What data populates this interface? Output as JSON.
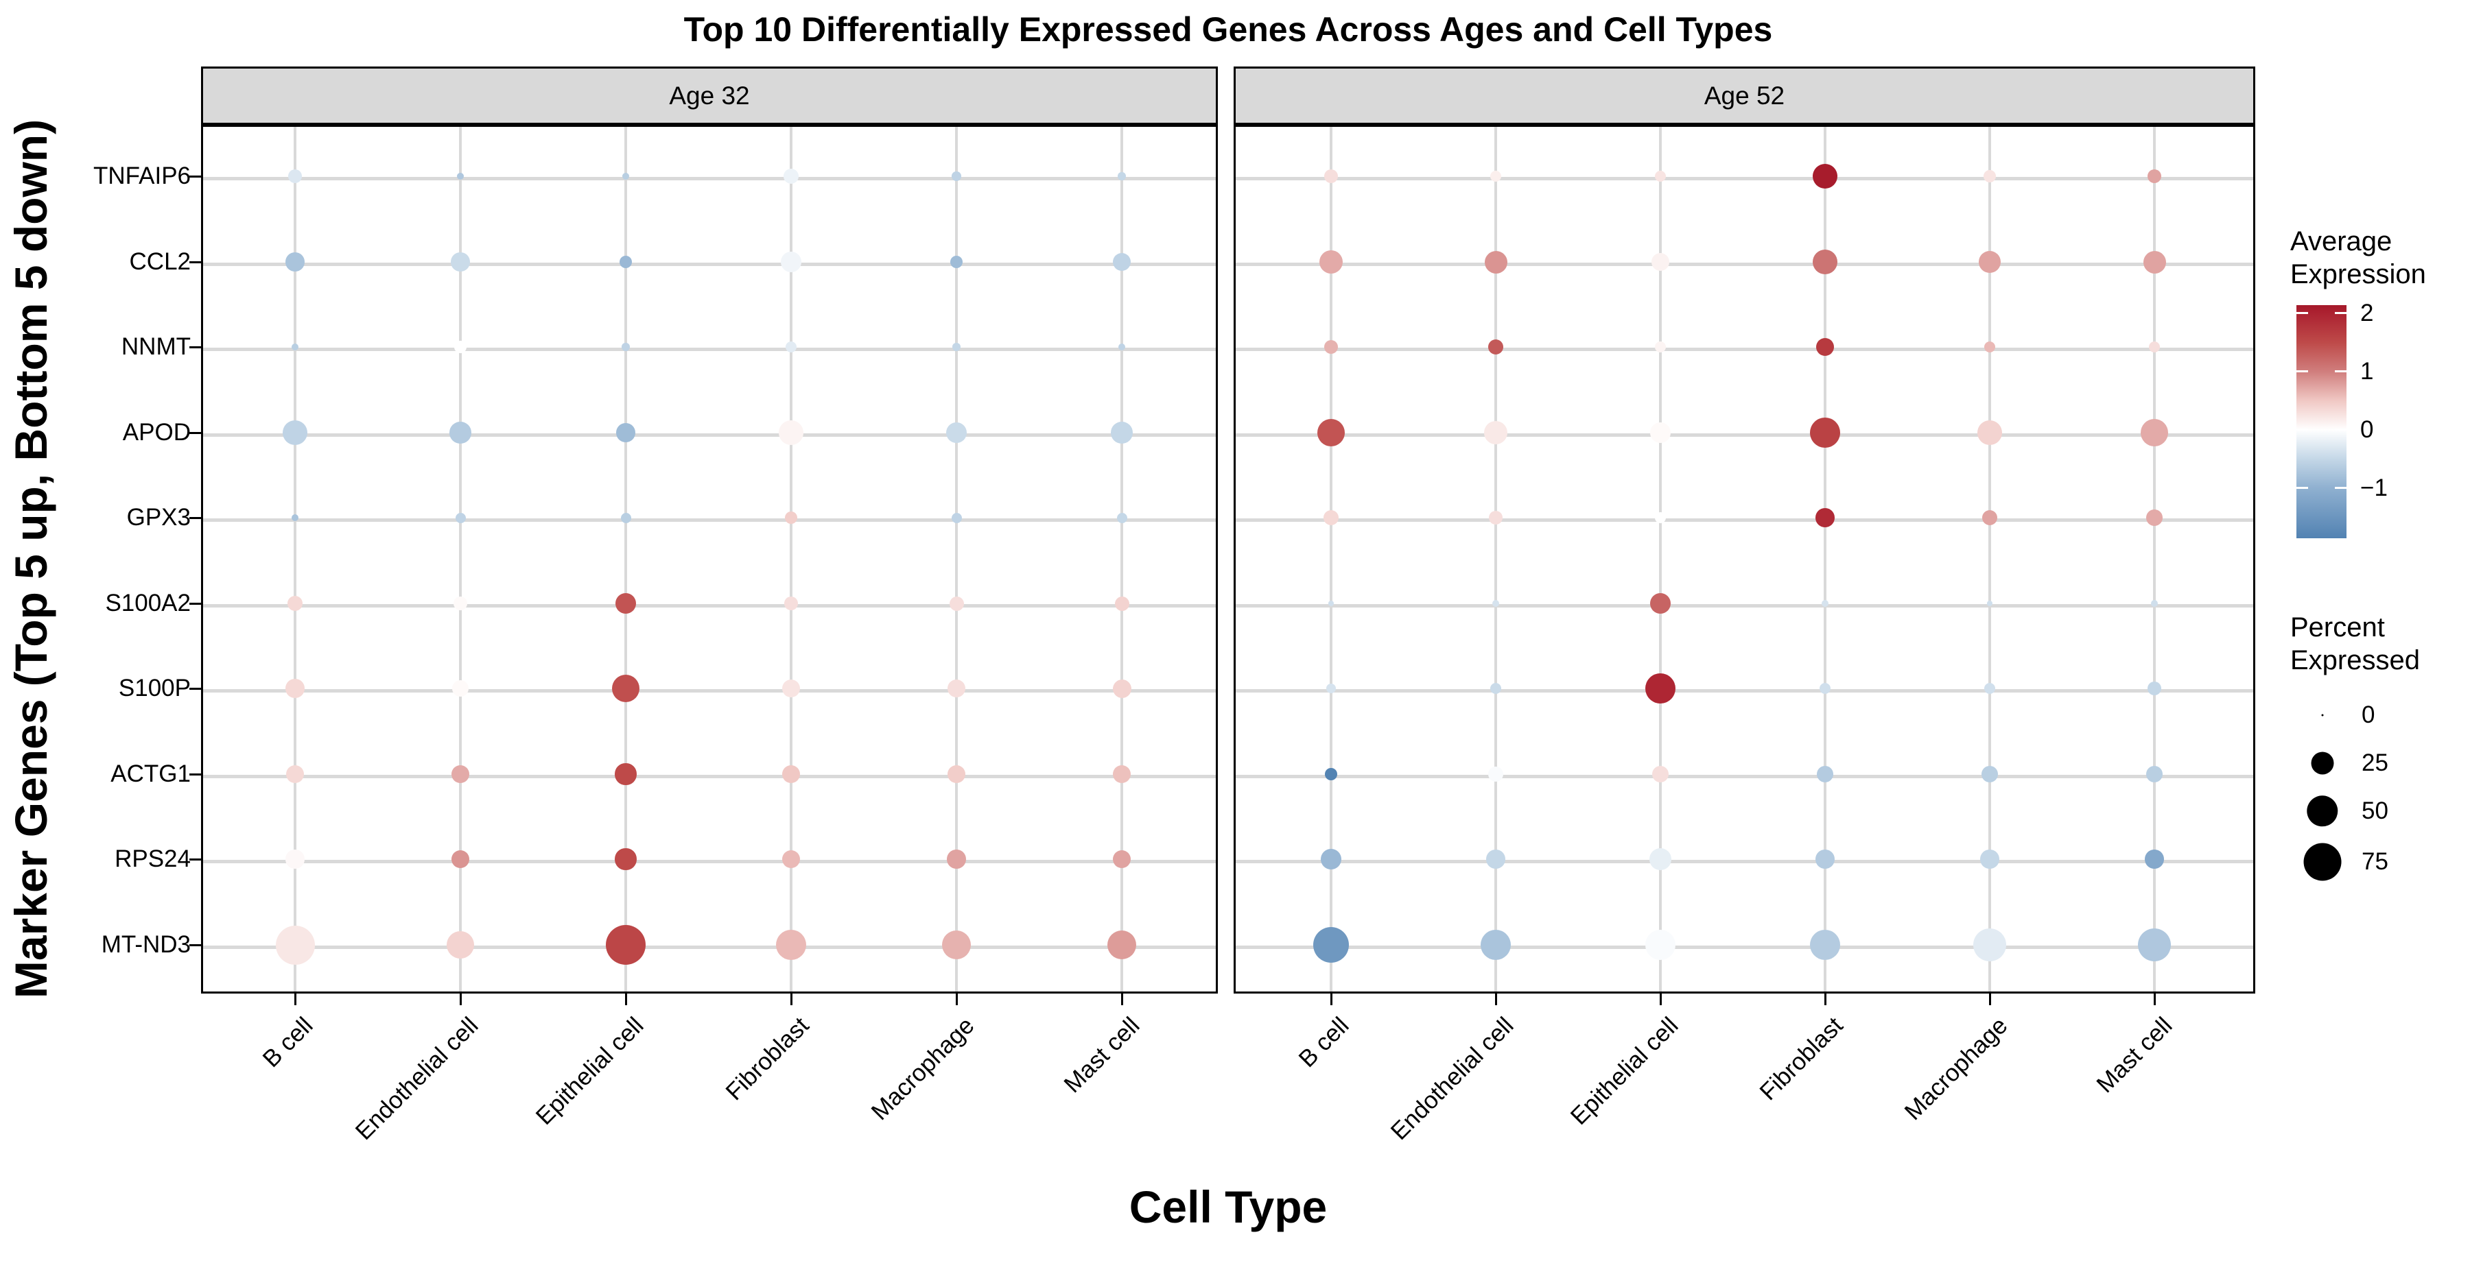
{
  "title": "Top 10 Differentially Expressed Genes Across Ages and Cell Types",
  "x_axis": {
    "title": "Cell Type",
    "categories": [
      "B cell",
      "Endothelial cell",
      "Epithelial cell",
      "Fibroblast",
      "Macrophage",
      "Mast cell"
    ]
  },
  "y_axis": {
    "title": "Marker Genes (Top 5 up, Bottom 5 down)"
  },
  "legend": {
    "color_title_line1": "Average",
    "color_title_line2": "Expression",
    "color_ticks": [
      {
        "label": "2",
        "value": 2
      },
      {
        "label": "1",
        "value": 1
      },
      {
        "label": "0",
        "value": 0
      },
      {
        "label": "−1",
        "value": -1
      }
    ],
    "size_title_line1": "Percent",
    "size_title_line2": "Expressed",
    "size_items": [
      {
        "label": "0",
        "pct": 0
      },
      {
        "label": "25",
        "pct": 25
      },
      {
        "label": "50",
        "pct": 50
      },
      {
        "label": "75",
        "pct": 75
      }
    ]
  },
  "colors": {
    "strip_bg": "#D9D9D9",
    "grid": "#D9D9D9",
    "panel_border": "#000000",
    "gradient_stops": [
      [
        2.14,
        "#A5192A"
      ],
      [
        2.0,
        "#AC2231"
      ],
      [
        1.5,
        "#BE4A49"
      ],
      [
        1.0,
        "#D07E7D"
      ],
      [
        0.5,
        "#F0C8C4"
      ],
      [
        0.0,
        "#FFFFFF"
      ],
      [
        -0.5,
        "#C4D7E7"
      ],
      [
        -1.0,
        "#8FB0D0"
      ],
      [
        -1.86,
        "#5282B2"
      ]
    ]
  },
  "chart_data": {
    "type": "bubble",
    "description": "Faceted dot plot (Seurat-style). Dot size = percent of cells expressing the gene; dot color = average scaled expression.",
    "title": "Top 10 Differentially Expressed Genes Across Ages and Cell Types",
    "xlabel": "Cell Type",
    "ylabel": "Marker Genes (Top 5 up, Bottom 5 down)",
    "facet_labels": [
      "Age 32",
      "Age 52"
    ],
    "categories": [
      "B cell",
      "Endothelial cell",
      "Epithelial cell",
      "Fibroblast",
      "Macrophage",
      "Mast cell"
    ],
    "genes": [
      "TNFAIP6",
      "CCL2",
      "NNMT",
      "APOD",
      "GPX3",
      "S100A2",
      "S100P",
      "ACTG1",
      "RPS24",
      "MT-ND3"
    ],
    "color_domain": [
      -1.86,
      2.14
    ],
    "size_breaks": [
      0,
      25,
      50,
      75
    ],
    "facets": [
      {
        "label": "Age 32",
        "percent_expressed": {
          "TNFAIP6": [
            8,
            1.5,
            1.5,
            10,
            3,
            2
          ],
          "CCL2": [
            17,
            17,
            6,
            20,
            6,
            15
          ],
          "NNMT": [
            1.5,
            6,
            2,
            5,
            2,
            1.5
          ],
          "APOD": [
            30,
            23,
            17,
            30,
            20,
            23
          ],
          "GPX3": [
            1.5,
            4,
            4,
            6,
            4,
            4
          ],
          "S100A2": [
            10,
            8,
            20,
            8,
            9,
            9
          ],
          "S100P": [
            17,
            12,
            40,
            15,
            15,
            16
          ],
          "ACTG1": [
            15,
            15,
            22,
            15,
            15,
            15
          ],
          "RPS24": [
            17,
            15,
            22,
            15,
            17,
            15
          ],
          "MT-ND3": [
            81,
            38,
            84,
            48,
            43,
            43
          ]
        },
        "avg_expression": {
          "TNFAIP6": [
            -0.3,
            -0.7,
            -0.6,
            -0.15,
            -0.55,
            -0.5
          ],
          "CCL2": [
            -0.75,
            -0.45,
            -0.9,
            -0.12,
            -0.85,
            -0.55
          ],
          "NNMT": [
            -0.6,
            0.0,
            -0.55,
            -0.25,
            -0.5,
            -0.55
          ],
          "APOD": [
            -0.55,
            -0.65,
            -0.85,
            0.1,
            -0.45,
            -0.5
          ],
          "GPX3": [
            -0.75,
            -0.55,
            -0.6,
            0.45,
            -0.55,
            -0.5
          ],
          "S100A2": [
            0.35,
            0.05,
            1.4,
            0.3,
            0.3,
            0.4
          ],
          "S100P": [
            0.35,
            0.05,
            1.45,
            0.25,
            0.3,
            0.4
          ],
          "ACTG1": [
            0.35,
            0.7,
            1.5,
            0.5,
            0.45,
            0.55
          ],
          "RPS24": [
            0.06,
            0.85,
            1.5,
            0.6,
            0.75,
            0.75
          ],
          "MT-ND3": [
            0.22,
            0.4,
            1.55,
            0.6,
            0.65,
            0.8
          ]
        }
      },
      {
        "label": "Age 52",
        "percent_expressed": {
          "TNFAIP6": [
            8,
            5,
            5,
            32,
            6,
            8
          ],
          "CCL2": [
            27,
            25,
            15,
            30,
            23,
            25
          ],
          "NNMT": [
            8,
            10,
            5,
            15,
            5,
            5
          ],
          "APOD": [
            38,
            27,
            20,
            47,
            30,
            38
          ],
          "GPX3": [
            10,
            8,
            5,
            17,
            10,
            12
          ],
          "S100A2": [
            0.7,
            1.4,
            20,
            1.4,
            0.7,
            1.4
          ],
          "S100P": [
            3.5,
            5,
            47,
            5,
            5,
            8
          ],
          "ACTG1": [
            6,
            10,
            13,
            12,
            12,
            12
          ],
          "RPS24": [
            20,
            17,
            23,
            17,
            17,
            17
          ],
          "MT-ND3": [
            69,
            47,
            47,
            47,
            56,
            56
          ]
        },
        "avg_expression": {
          "TNFAIP6": [
            0.3,
            0.15,
            0.25,
            2.1,
            0.25,
            0.75
          ],
          "CCL2": [
            0.7,
            0.85,
            0.12,
            1.1,
            0.75,
            0.75
          ],
          "NNMT": [
            0.65,
            1.35,
            0.1,
            1.7,
            0.6,
            0.3
          ],
          "APOD": [
            1.4,
            0.2,
            0.05,
            1.6,
            0.4,
            0.7
          ],
          "GPX3": [
            0.35,
            0.3,
            0.0,
            1.9,
            0.75,
            0.7
          ],
          "S100A2": [
            -0.4,
            -0.35,
            1.25,
            -0.35,
            -0.4,
            -0.4
          ],
          "S100P": [
            -0.35,
            -0.45,
            1.95,
            -0.4,
            -0.4,
            -0.5
          ],
          "ACTG1": [
            -1.85,
            -0.05,
            0.3,
            -0.65,
            -0.6,
            -0.6
          ],
          "RPS24": [
            -0.9,
            -0.5,
            -0.2,
            -0.65,
            -0.5,
            -1.15
          ],
          "MT-ND3": [
            -1.45,
            -0.75,
            -0.05,
            -0.65,
            -0.25,
            -0.7
          ]
        }
      }
    ]
  }
}
